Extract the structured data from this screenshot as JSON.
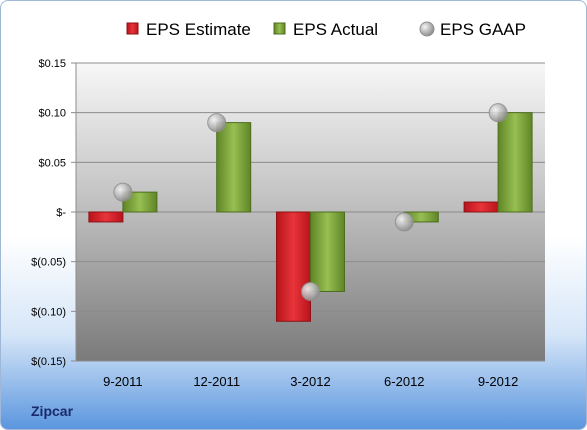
{
  "company": "Zipcar",
  "colors": {
    "estimate": "#d9232b",
    "actual": "#7ea53e",
    "gaap": "#b9b9b9"
  },
  "chart_data": {
    "type": "bar",
    "categories": [
      "9-2011",
      "12-2011",
      "3-2012",
      "6-2012",
      "9-2012"
    ],
    "series": [
      {
        "name": "EPS Estimate",
        "kind": "bar",
        "values": [
          -0.01,
          null,
          -0.11,
          null,
          0.01
        ]
      },
      {
        "name": "EPS Actual",
        "kind": "bar",
        "values": [
          0.02,
          0.09,
          -0.08,
          -0.01,
          0.1
        ]
      },
      {
        "name": "EPS GAAP",
        "kind": "marker",
        "values": [
          0.02,
          0.09,
          -0.08,
          -0.01,
          0.1
        ]
      }
    ],
    "yticks": [
      0.15,
      0.1,
      0.05,
      0,
      -0.05,
      -0.1,
      -0.15
    ],
    "ytick_labels": [
      "$0.15",
      "$0.10",
      "$0.05",
      "$-",
      "$(0.05)",
      "$(0.10)",
      "$(0.15)"
    ],
    "ylim": [
      -0.15,
      0.15
    ],
    "legend_position": "top",
    "grid": true
  }
}
